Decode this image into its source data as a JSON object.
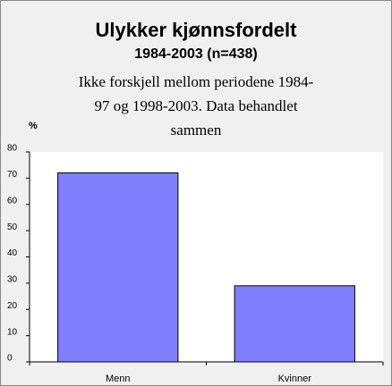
{
  "chart_data": {
    "type": "bar",
    "title": "Ulykker kjønnsfordelt",
    "subtitle": "1984-2003 (n=438)",
    "annotation": [
      "Ikke forskjell mellom periodene 1984-",
      "97 og 1998-2003.  Data behandlet",
      "sammen"
    ],
    "y_label": "%",
    "categories": [
      "Menn",
      "Kvinner"
    ],
    "values": [
      72,
      29
    ],
    "color": "#8080ff",
    "ylim": [
      0,
      80
    ],
    "yticks": [
      0,
      10,
      20,
      30,
      40,
      50,
      60,
      70,
      80
    ],
    "grid": false
  }
}
